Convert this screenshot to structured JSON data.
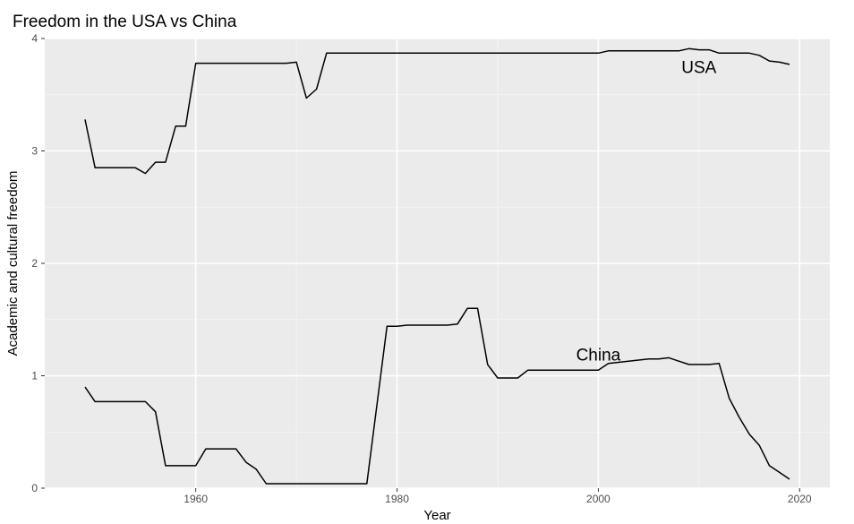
{
  "chart_data": {
    "type": "line",
    "title": "Freedom in the USA vs China",
    "xlabel": "Year",
    "ylabel": "Academic and cultural freedom",
    "xlim": [
      1945,
      2023
    ],
    "ylim": [
      0,
      4
    ],
    "x_ticks": [
      1960,
      1980,
      2000,
      2020
    ],
    "y_ticks": [
      0,
      1,
      2,
      3,
      4
    ],
    "grid": true,
    "panel_background": "#ebebeb",
    "line_color": "#000000",
    "series": [
      {
        "name": "USA",
        "x": [
          1949,
          1950,
          1951,
          1952,
          1953,
          1954,
          1955,
          1956,
          1957,
          1958,
          1959,
          1960,
          1961,
          1962,
          1963,
          1964,
          1965,
          1966,
          1967,
          1968,
          1969,
          1970,
          1971,
          1972,
          1973,
          1974,
          1975,
          1980,
          1985,
          1990,
          1995,
          2000,
          2001,
          2005,
          2008,
          2009,
          2010,
          2011,
          2012,
          2013,
          2015,
          2016,
          2017,
          2018,
          2019
        ],
        "y": [
          3.28,
          2.85,
          2.85,
          2.85,
          2.85,
          2.85,
          2.8,
          2.9,
          2.9,
          3.22,
          3.22,
          3.78,
          3.78,
          3.78,
          3.78,
          3.78,
          3.78,
          3.78,
          3.78,
          3.78,
          3.78,
          3.79,
          3.47,
          3.55,
          3.87,
          3.87,
          3.87,
          3.87,
          3.87,
          3.87,
          3.87,
          3.87,
          3.89,
          3.89,
          3.89,
          3.91,
          3.9,
          3.9,
          3.87,
          3.87,
          3.87,
          3.85,
          3.8,
          3.79,
          3.77
        ]
      },
      {
        "name": "China",
        "x": [
          1949,
          1950,
          1951,
          1952,
          1953,
          1954,
          1955,
          1956,
          1957,
          1958,
          1959,
          1960,
          1961,
          1962,
          1963,
          1964,
          1965,
          1966,
          1967,
          1968,
          1970,
          1975,
          1977,
          1979,
          1980,
          1981,
          1983,
          1985,
          1986,
          1987,
          1988,
          1989,
          1990,
          1991,
          1992,
          1993,
          1995,
          2000,
          2001,
          2005,
          2006,
          2007,
          2008,
          2009,
          2010,
          2011,
          2012,
          2013,
          2014,
          2015,
          2016,
          2017,
          2018,
          2019
        ],
        "y": [
          0.9,
          0.77,
          0.77,
          0.77,
          0.77,
          0.77,
          0.77,
          0.68,
          0.2,
          0.2,
          0.2,
          0.2,
          0.35,
          0.35,
          0.35,
          0.35,
          0.23,
          0.17,
          0.04,
          0.04,
          0.04,
          0.04,
          0.04,
          1.44,
          1.44,
          1.45,
          1.45,
          1.45,
          1.46,
          1.6,
          1.6,
          1.1,
          0.98,
          0.98,
          0.98,
          1.05,
          1.05,
          1.05,
          1.11,
          1.15,
          1.15,
          1.16,
          1.13,
          1.1,
          1.1,
          1.1,
          1.11,
          0.8,
          0.63,
          0.48,
          0.38,
          0.2,
          0.14,
          0.08
        ]
      }
    ],
    "annotations": [
      {
        "text": "USA",
        "x": 2010,
        "y": 3.75
      },
      {
        "text": "China",
        "x": 2000,
        "y": 1.19
      }
    ]
  }
}
